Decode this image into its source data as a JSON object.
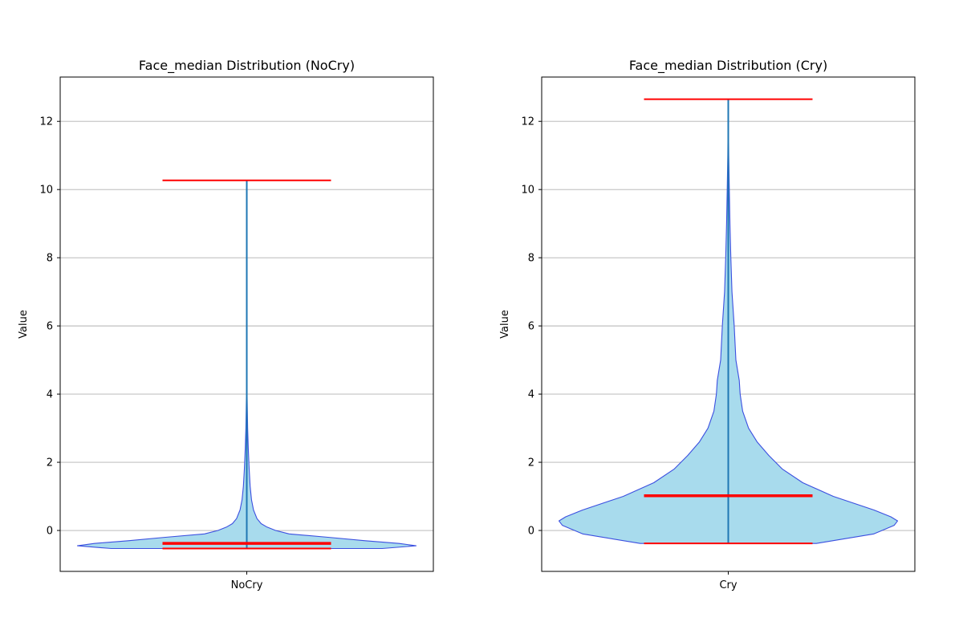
{
  "chart_data": [
    {
      "type": "violin",
      "title": "Face_median Distribution (NoCry)",
      "xlabel": "",
      "ylabel": "Value",
      "categories": [
        "NoCry"
      ],
      "ylim": [
        -1.2,
        13.3
      ],
      "yticks": [
        0,
        2,
        4,
        6,
        8,
        10,
        12
      ],
      "grid": "y",
      "stats": {
        "min": -0.53,
        "max": 10.27,
        "median": -0.38
      },
      "density_profile": {
        "y": [
          -0.53,
          -0.45,
          -0.42,
          -0.38,
          -0.3,
          -0.2,
          -0.1,
          0.0,
          0.1,
          0.2,
          0.35,
          0.6,
          0.9,
          1.3,
          1.8,
          2.4,
          3.0,
          4.0,
          10.27
        ],
        "width": [
          0.8,
          1.0,
          0.96,
          0.9,
          0.7,
          0.48,
          0.25,
          0.17,
          0.12,
          0.085,
          0.06,
          0.04,
          0.028,
          0.02,
          0.014,
          0.009,
          0.005,
          0.002,
          0.0
        ]
      },
      "colors": {
        "fill": "#a8dbed",
        "edge": "#3b4fe0",
        "line": "#1f77b4",
        "extrema": "#ff0000"
      }
    },
    {
      "type": "violin",
      "title": "Face_median Distribution (Cry)",
      "xlabel": "",
      "ylabel": "Value",
      "categories": [
        "Cry"
      ],
      "ylim": [
        -1.2,
        13.3
      ],
      "yticks": [
        0,
        2,
        4,
        6,
        8,
        10,
        12
      ],
      "grid": "y",
      "stats": {
        "min": -0.38,
        "max": 12.65,
        "median": 1.02
      },
      "density_profile": {
        "y": [
          -0.38,
          -0.1,
          0.15,
          0.28,
          0.4,
          0.6,
          1.0,
          1.4,
          1.8,
          2.2,
          2.6,
          3.0,
          3.5,
          4.0,
          4.4,
          5.0,
          6.0,
          7.0,
          8.0,
          9.0,
          10.0,
          11.0,
          12.65
        ],
        "width": [
          0.52,
          0.86,
          0.98,
          1.0,
          0.96,
          0.86,
          0.62,
          0.44,
          0.32,
          0.24,
          0.17,
          0.12,
          0.085,
          0.07,
          0.065,
          0.045,
          0.035,
          0.022,
          0.015,
          0.01,
          0.006,
          0.003,
          0.0
        ]
      },
      "colors": {
        "fill": "#a8dbed",
        "edge": "#3b4fe0",
        "line": "#1f77b4",
        "extrema": "#ff0000"
      }
    }
  ]
}
